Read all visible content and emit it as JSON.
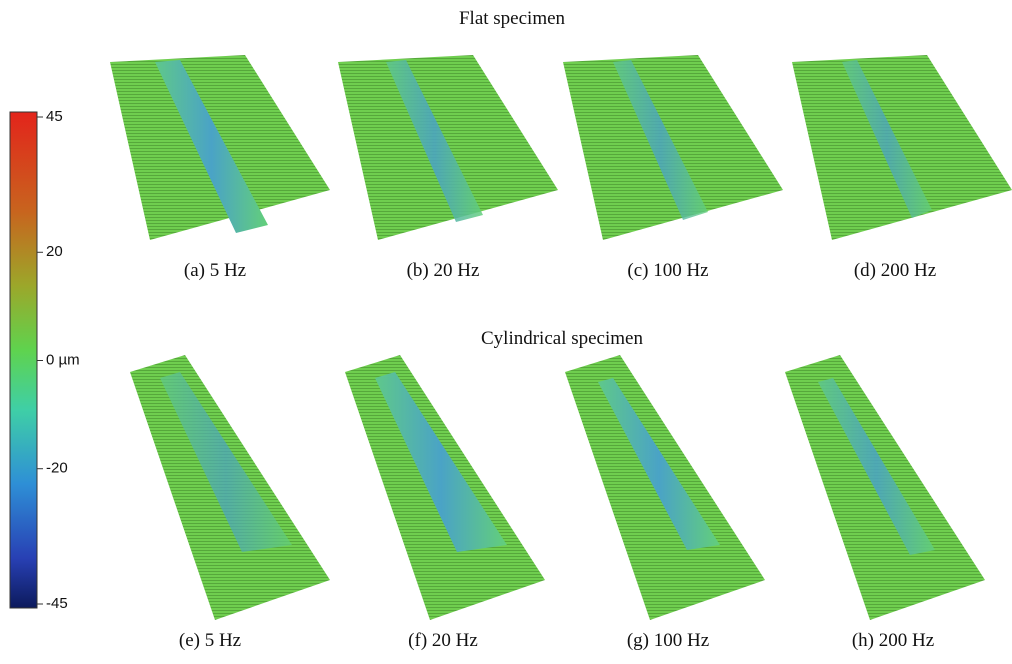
{
  "figure": {
    "colorbar": {
      "lim": [
        -45,
        45
      ],
      "ticks": [
        45,
        20,
        {
          "value": 0,
          "label": "0 µm"
        },
        -20,
        -45
      ]
    },
    "rows": [
      {
        "title": "Flat specimen",
        "panels": [
          "(a) 5 Hz",
          "(b) 20 Hz",
          "(c) 100 Hz",
          "(d) 200 Hz"
        ]
      },
      {
        "title": "Cylindrical specimen",
        "panels": [
          "(e) 5 Hz",
          "(f) 20 Hz",
          "(g) 100 Hz",
          "(h) 200 Hz"
        ]
      }
    ]
  }
}
